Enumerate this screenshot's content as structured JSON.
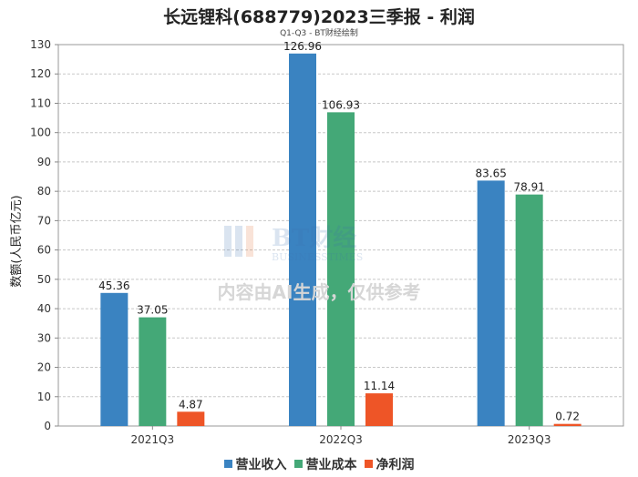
{
  "chart_data": {
    "type": "bar",
    "title": "长远锂科(688779)2023三季报 - 利润",
    "subtitle": "Q1-Q3 - BT财经绘制",
    "xlabel": "",
    "ylabel": "数额(人民币亿元)",
    "categories": [
      "2021Q3",
      "2022Q3",
      "2023Q3"
    ],
    "ylim": [
      0,
      130
    ],
    "yticks": [
      0,
      10,
      20,
      30,
      40,
      50,
      60,
      70,
      80,
      90,
      100,
      110,
      120,
      130
    ],
    "grid": true,
    "legend_position": "bottom",
    "series": [
      {
        "name": "营业收入",
        "color": "#3a83c1",
        "values": [
          45.36,
          126.96,
          83.65
        ]
      },
      {
        "name": "营业成本",
        "color": "#44a877",
        "values": [
          37.05,
          106.93,
          78.91
        ]
      },
      {
        "name": "净利润",
        "color": "#ee5527",
        "values": [
          4.87,
          11.14,
          0.72
        ]
      }
    ]
  },
  "watermark": {
    "logo_text": "BT财经",
    "logo_subtext": "BUSINESSTIMES",
    "notice": "内容由AI生成，仅供参考"
  }
}
